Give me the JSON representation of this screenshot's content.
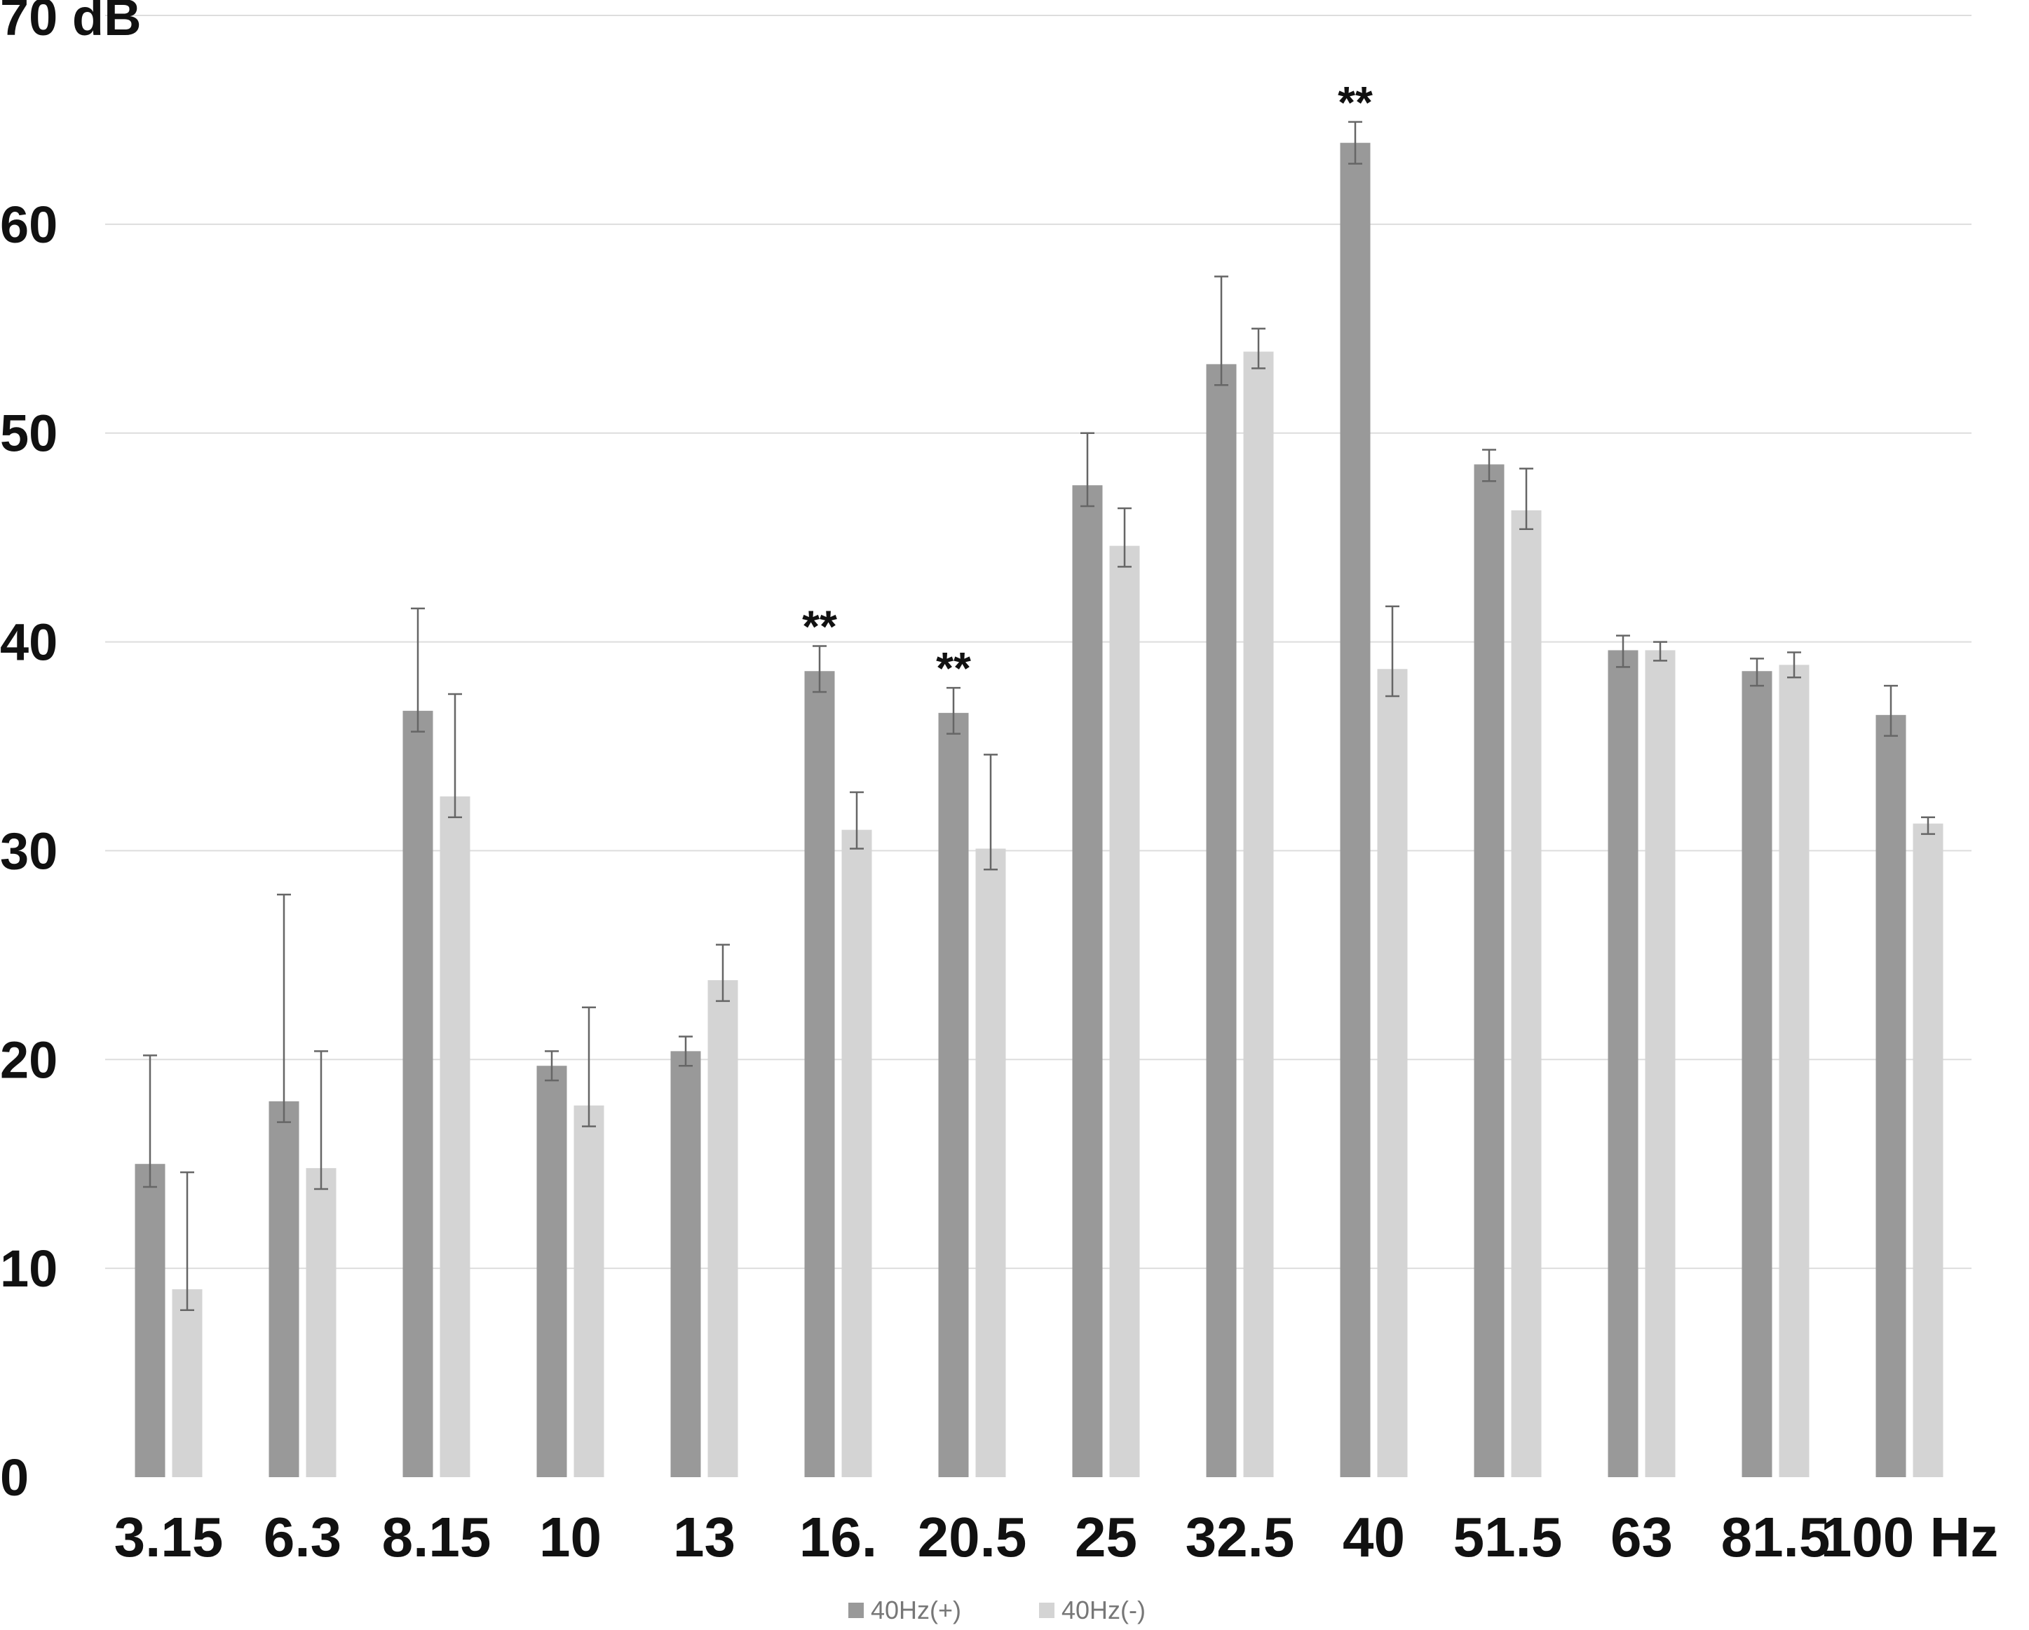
{
  "chart_data": {
    "type": "bar",
    "title": "",
    "xlabel": "",
    "ylabel": "",
    "categories": [
      "3.15",
      "6.3",
      "8.15",
      "10",
      "13",
      "16.",
      "20.5",
      "25",
      "32.5",
      "40",
      "51.5",
      "63",
      "81.5",
      "100 Hz"
    ],
    "ylim": [
      0,
      70
    ],
    "yticks": [
      0,
      10,
      20,
      30,
      40,
      50,
      60,
      70
    ],
    "ytick_labels": [
      "0",
      "10",
      "20",
      "30",
      "40",
      "50",
      "60",
      "70 dB"
    ],
    "grid": true,
    "legend_position": "bottom",
    "series": [
      {
        "name": "40Hz(+)",
        "color": "#999999",
        "values": [
          15.0,
          18.0,
          36.7,
          19.7,
          20.4,
          38.6,
          36.6,
          47.5,
          53.3,
          63.9,
          48.5,
          39.6,
          38.6,
          36.5
        ],
        "err_upper": [
          5.2,
          9.9,
          4.9,
          0.7,
          0.7,
          1.2,
          1.2,
          2.5,
          4.2,
          1.0,
          0.7,
          0.7,
          0.6,
          1.4
        ],
        "err_lower": [
          1.1,
          1.0,
          1.0,
          0.7,
          0.7,
          1.0,
          1.0,
          1.0,
          1.0,
          1.0,
          0.8,
          0.8,
          0.7,
          1.0
        ]
      },
      {
        "name": "40Hz(-)",
        "color": "#d4d4d4",
        "values": [
          9.0,
          14.8,
          32.6,
          17.8,
          23.8,
          31.0,
          30.1,
          44.6,
          53.9,
          38.7,
          46.3,
          39.6,
          38.9,
          31.3
        ],
        "err_upper": [
          5.6,
          5.6,
          4.9,
          4.7,
          1.7,
          1.8,
          4.5,
          1.8,
          1.1,
          3.0,
          2.0,
          0.4,
          0.6,
          0.3
        ],
        "err_lower": [
          1.0,
          1.0,
          1.0,
          1.0,
          1.0,
          0.9,
          1.0,
          1.0,
          0.8,
          1.3,
          0.9,
          0.5,
          0.6,
          0.5
        ]
      }
    ],
    "annotations": [
      {
        "category": "16.",
        "series": "40Hz(+)",
        "text": "**"
      },
      {
        "category": "20.5",
        "series": "40Hz(+)",
        "text": "**"
      },
      {
        "category": "40",
        "series": "40Hz(+)",
        "text": "**"
      }
    ]
  }
}
